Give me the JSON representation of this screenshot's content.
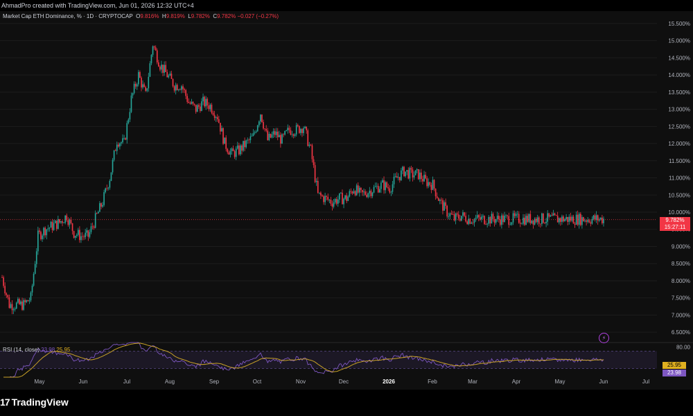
{
  "header": {
    "caption": "AhmadPro created with TradingView.com, Jun 01, 2026 12:32 UTC+4"
  },
  "legend": {
    "symbol": "Market Cap ETH Dominance, % · 1D · CRYPTOCAP",
    "open": "9.816%",
    "high": "9.819%",
    "low": "9.782%",
    "close": "9.782%",
    "change": "−0.027 (−0.27%)"
  },
  "rsi_legend": {
    "label": "RSI (14, close)",
    "rsi": "23.98",
    "ma": "25.95"
  },
  "last_price": {
    "value": "9.782%",
    "countdown": "15:27:11"
  },
  "rsi_tags": {
    "ma": "25.95",
    "rsi": "23.98"
  },
  "colors": {
    "up": "#26a69a",
    "down": "#f23645",
    "rsi": "#7e57c2",
    "rsi_ma": "#c9a227",
    "background": "#0f0f0f"
  },
  "brand": {
    "name": "TradingView",
    "logo_mark": "17"
  },
  "chart_data": [
    {
      "type": "candlestick",
      "title": "Market Cap ETH Dominance, % · 1D · CRYPTOCAP",
      "x_tick_labels": [
        "May",
        "Jun",
        "Jul",
        "Aug",
        "Sep",
        "Oct",
        "Nov",
        "Dec",
        "2026",
        "Feb",
        "Mar",
        "Apr",
        "May",
        "Jun",
        "Jul"
      ],
      "y_tick_labels": [
        "6.500%",
        "7.000%",
        "7.500%",
        "8.000%",
        "8.500%",
        "9.000%",
        "9.500%",
        "10.000%",
        "10.500%",
        "11.000%",
        "11.500%",
        "12.000%",
        "12.500%",
        "13.000%",
        "13.500%",
        "14.000%",
        "14.500%",
        "15.000%",
        "15.500%"
      ],
      "ylim": [
        6.2,
        15.7
      ],
      "price_anchors": {
        "x": [
          0,
          5,
          10,
          15,
          20,
          25,
          30,
          35,
          40,
          45,
          50,
          55,
          60,
          65,
          70,
          75,
          80,
          85,
          90,
          95,
          100,
          105,
          110,
          115,
          120,
          125,
          130,
          135,
          140,
          145,
          150,
          155,
          160,
          165,
          170,
          175,
          180,
          185,
          190,
          195,
          200,
          205,
          210,
          215,
          220,
          225,
          230,
          235,
          240,
          245,
          250,
          255,
          260,
          265,
          270,
          275,
          280,
          285,
          290,
          295,
          300,
          305,
          310,
          315,
          320,
          325,
          330,
          335,
          340,
          345,
          350,
          355,
          360,
          365,
          370,
          375,
          380,
          385,
          390,
          395,
          400,
          405,
          410,
          415,
          420
        ],
        "values": [
          8.1,
          7.3,
          7.3,
          7.3,
          7.5,
          9.3,
          9.5,
          9.6,
          9.7,
          9.9,
          9.4,
          9.3,
          9.3,
          9.8,
          10.3,
          11.0,
          12.1,
          12.0,
          13.3,
          14.0,
          13.4,
          14.9,
          14.3,
          14.0,
          13.7,
          13.7,
          13.2,
          13.0,
          13.2,
          13.1,
          12.8,
          12.0,
          11.7,
          11.8,
          12.0,
          12.2,
          12.9,
          12.1,
          12.3,
          12.1,
          12.4,
          12.4,
          12.5,
          11.8,
          10.5,
          10.4,
          10.3,
          10.4,
          10.4,
          10.7,
          10.5,
          10.6,
          10.7,
          10.8,
          10.7,
          11.0,
          11.2,
          11.1,
          11.1,
          10.9,
          10.8,
          10.3,
          10.0,
          9.8,
          9.9,
          9.8,
          9.8,
          9.8,
          9.8,
          9.8,
          9.8,
          9.8,
          9.8,
          9.8,
          9.8,
          9.8,
          9.8,
          9.8,
          9.8,
          9.8,
          9.8,
          9.8,
          9.8,
          9.8,
          9.8
        ],
        "note_bars_visible": 420
      },
      "last_value": 9.782
    },
    {
      "type": "line",
      "title": "RSI (14, close)",
      "y_tick_labels": [
        "80.00"
      ],
      "series": [
        {
          "name": "RSI",
          "last": 23.98
        },
        {
          "name": "MA",
          "last": 25.95
        }
      ],
      "bands": [
        30,
        70
      ],
      "ylim": [
        10,
        90
      ]
    }
  ]
}
